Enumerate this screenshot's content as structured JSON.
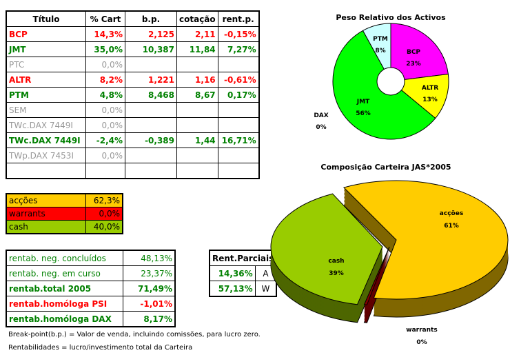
{
  "main_table": {
    "headers": [
      "Título",
      "% Cart",
      "b.p.",
      "cotação",
      "rent.p."
    ],
    "rows": [
      {
        "titulo": "BCP",
        "cart": "14,3%",
        "bp": "2,125",
        "cot": "2,11",
        "rent": "-0,15%",
        "color": "red"
      },
      {
        "titulo": "JMT",
        "cart": "35,0%",
        "bp": "10,387",
        "cot": "11,84",
        "rent": "7,27%",
        "color": "grn"
      },
      {
        "titulo": "PTC",
        "cart": "0,0%",
        "bp": "",
        "cot": "",
        "rent": "",
        "color": "gry"
      },
      {
        "titulo": "ALTR",
        "cart": "8,2%",
        "bp": "1,221",
        "cot": "1,16",
        "rent": "-0,61%",
        "color": "red"
      },
      {
        "titulo": "PTM",
        "cart": "4,8%",
        "bp": "8,468",
        "cot": "8,67",
        "rent": "0,17%",
        "color": "grn"
      },
      {
        "titulo": "SEM",
        "cart": "0,0%",
        "bp": "",
        "cot": "",
        "rent": "",
        "color": "gry"
      },
      {
        "titulo": "TWc.DAX 7449I",
        "cart": "0,0%",
        "bp": "",
        "cot": "",
        "rent": "",
        "color": "gry"
      },
      {
        "titulo": "TWc.DAX 7449I",
        "cart": "-2,4%",
        "bp": "-0,389",
        "cot": "1,44",
        "rent": "16,71%",
        "color": "grn"
      },
      {
        "titulo": "TWp.DAX 7453I",
        "cart": "0,0%",
        "bp": "",
        "cot": "",
        "rent": "",
        "color": "gry"
      },
      {
        "titulo": "",
        "cart": "",
        "bp": "",
        "cot": "",
        "rent": "",
        "color": "gry"
      }
    ]
  },
  "allocation": [
    {
      "label": "acções",
      "value": "62,3%",
      "bg": "#ffcc00"
    },
    {
      "label": "warrants",
      "value": "0,0%",
      "bg": "#ff0000"
    },
    {
      "label": "cash",
      "value": "40,0%",
      "bg": "#99cc00"
    }
  ],
  "rentab": [
    {
      "label": "rentab. neg. concluídos",
      "value": "48,13%",
      "style": "grn"
    },
    {
      "label": "rentab. neg. em curso",
      "value": "23,37%",
      "style": "grn"
    },
    {
      "label": "rentab.total 2005",
      "value": "71,49%",
      "style": "grn b"
    },
    {
      "label": "rentab.homóloga PSI",
      "value": "-1,01%",
      "style": "red b"
    },
    {
      "label": "rentab.homóloga DAX",
      "value": "8,17%",
      "style": "grn b"
    }
  ],
  "rent_parciais": {
    "title": "Rent.Parciais",
    "rows": [
      {
        "value": "14,36%",
        "type": "A"
      },
      {
        "value": "57,13%",
        "type": "W"
      }
    ]
  },
  "notes": [
    "Break-point(b.p.) = Valor de venda, incluindo comissões, para lucro zero.",
    "Rentabilidades = lucro/investimento total da Carteira"
  ],
  "chart_data": [
    {
      "type": "pie",
      "title": "Peso Relativo dos Activos",
      "donut": true,
      "slices": [
        {
          "label": "BCP",
          "value": 23,
          "color": "#ff00ff"
        },
        {
          "label": "ALTR",
          "value": 13,
          "color": "#ffff00"
        },
        {
          "label": "DAX",
          "value": 0,
          "color": "#ff0000"
        },
        {
          "label": "JMT",
          "value": 56,
          "color": "#00ff00"
        },
        {
          "label": "PTM",
          "value": 8,
          "color": "#ccffff"
        }
      ]
    },
    {
      "type": "pie",
      "title": "Composição Carteira JAS*2005",
      "style": "3d-exploded",
      "slices": [
        {
          "label": "acções",
          "value": 61,
          "color": "#ffcc00"
        },
        {
          "label": "warrants",
          "value": 0,
          "color": "#800000"
        },
        {
          "label": "cash",
          "value": 39,
          "color": "#99cc00"
        }
      ]
    }
  ]
}
